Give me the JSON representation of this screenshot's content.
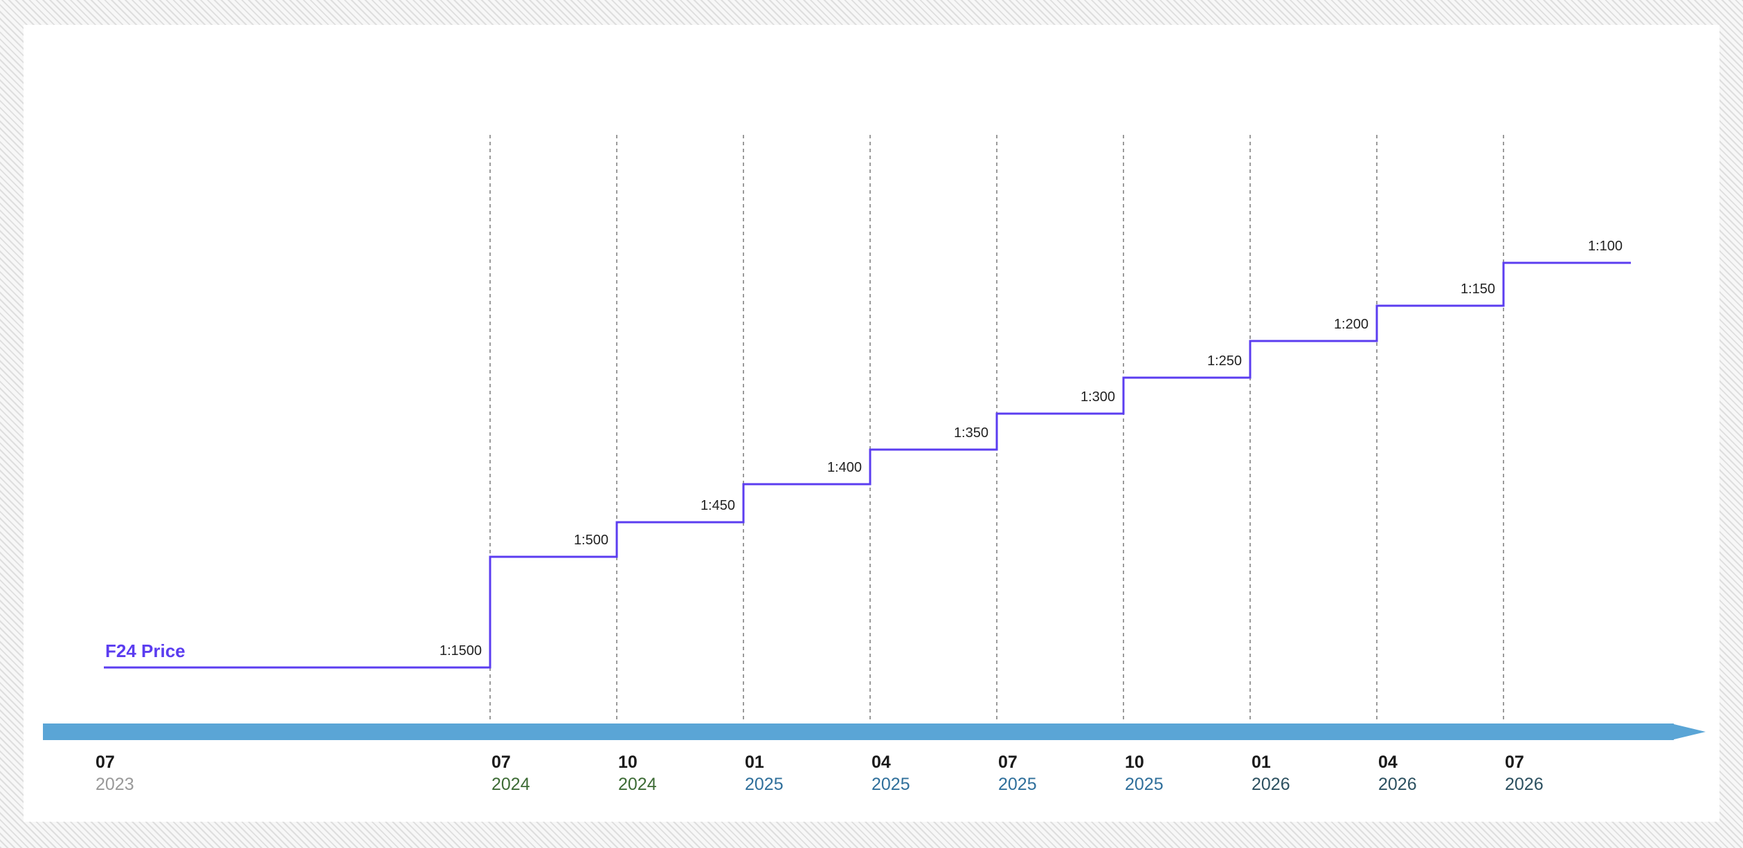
{
  "chart_data": {
    "type": "line",
    "step": "post",
    "title": "",
    "xlabel": "",
    "ylabel": "",
    "series": [
      {
        "name": "F24 Price",
        "color": "#5b3df0",
        "points": [
          {
            "date": "2023-07",
            "label": "1:1500"
          },
          {
            "date": "2024-07",
            "label": "1:500"
          },
          {
            "date": "2024-10",
            "label": "1:450"
          },
          {
            "date": "2025-01",
            "label": "1:400"
          },
          {
            "date": "2025-04",
            "label": "1:350"
          },
          {
            "date": "2025-07",
            "label": "1:300"
          },
          {
            "date": "2025-10",
            "label": "1:250"
          },
          {
            "date": "2026-01",
            "label": "1:200"
          },
          {
            "date": "2026-04",
            "label": "1:150"
          },
          {
            "date": "2026-07",
            "label": "1:100"
          }
        ]
      }
    ],
    "x_ticks": [
      {
        "date": "2023-07",
        "month": "07",
        "year": "2023",
        "year_color": "#999999",
        "gridline": false
      },
      {
        "date": "2024-07",
        "month": "07",
        "year": "2024",
        "year_color": "#3d6b35",
        "gridline": true
      },
      {
        "date": "2024-10",
        "month": "10",
        "year": "2024",
        "year_color": "#3d6b35",
        "gridline": true
      },
      {
        "date": "2025-01",
        "month": "01",
        "year": "2025",
        "year_color": "#2f6f9b",
        "gridline": true
      },
      {
        "date": "2025-04",
        "month": "04",
        "year": "2025",
        "year_color": "#2f6f9b",
        "gridline": true
      },
      {
        "date": "2025-07",
        "month": "07",
        "year": "2025",
        "year_color": "#2f6f9b",
        "gridline": true
      },
      {
        "date": "2025-10",
        "month": "10",
        "year": "2025",
        "year_color": "#2f6f9b",
        "gridline": true
      },
      {
        "date": "2026-01",
        "month": "01",
        "year": "2026",
        "year_color": "#2c5060",
        "gridline": true
      },
      {
        "date": "2026-04",
        "month": "04",
        "year": "2026",
        "year_color": "#2c5060",
        "gridline": true
      },
      {
        "date": "2026-07",
        "month": "07",
        "year": "2026",
        "year_color": "#2c5060",
        "gridline": true
      }
    ],
    "grid": "dashed vertical lines at tick dates",
    "timeline_arrow_color": "#5aa5d6",
    "legend": "inline label at series start"
  }
}
